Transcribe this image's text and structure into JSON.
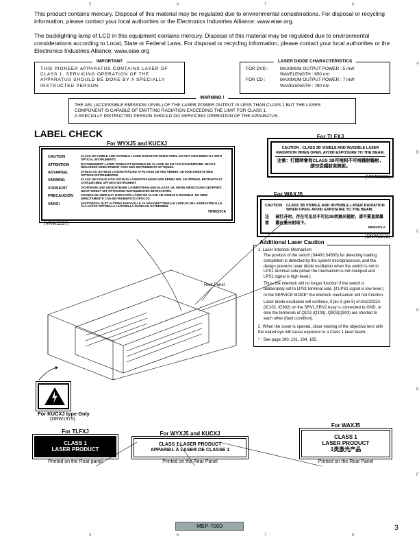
{
  "ruler": {
    "top": [
      "5",
      "6",
      "7",
      "8"
    ],
    "bottom": [
      "5",
      "6",
      "7",
      "8"
    ],
    "side": [
      "A",
      "B",
      "C",
      "D",
      "E",
      "F"
    ]
  },
  "intro": {
    "p1": "This product contains mercury. Disposal of this material may be regulated due to environmental considerations. For disposal or recycling information, please contact your local authorities or the Electronics Industries Alliance: www.eiae.org.",
    "p2": "The backlighting lamp of LCD in this equipment contains mercury. Disposal of this material may be regulated due to environmental considerations according to Local, State or Federal Laws. For disposal or recycling information, please contact your local authorities or the Electronics Industries Alliance: www.eiae.org"
  },
  "important": {
    "title": "IMPORTANT",
    "body": "THIS PIONEER APPARATUS CONTAINS LASER OF CLASS 1. SERVICING OPERATION OF THE APPARATUS SHOULD BE DONE BY A SPECIALLY INSTRUCTED PERSON."
  },
  "laser_diode": {
    "title": "LASER DIODE CHARACTERISTICS",
    "dvd_label": "FOR DVD :",
    "dvd_power": "MAXIMUM OUTPUT POWER : 5 mW",
    "dvd_wave": "WAVELENGTH : 650 nm",
    "cd_label": "FOR CD :",
    "cd_power": "MAXIMUM OUTPUT POWER : 7 mW",
    "cd_wave": "WAVELENGTH : 780 nm"
  },
  "warning_box": {
    "title": "WARNING !",
    "body": "THE AEL (ACCESSIBLE EMISSION LEVEL) OF THE LASER POWER OUTPUT IS LESS THAN CLASS 1 BUT THE LASER COMPONENT IS CAPABLE OF EMITTING RADIATION EXCEEDING THE LIMIT FOR CLASS 1.\nA SPECIALLY INSTRUCTED PERSON SHOULD DO SERVICING OPERATION OF THE APPARATUS."
  },
  "label_check": {
    "heading": "LABEL CHECK",
    "for_wyxj5_kucxj": "For WYXJ5 and KUCXJ",
    "for_tlfxj": "For TLFXJ",
    "for_waxj5": "For WAXJ5",
    "vrw2257": "(VRW2257)",
    "vrw2159": "(VRW2159)",
    "drw2372": "(DRW2372)",
    "drw1975": "(DRW1975)",
    "kucxj_only": "For KUCXJ type Only",
    "rear_panel": "Rear Panel"
  },
  "caution_label": {
    "rows": [
      [
        "CAUTION",
        "CLASS 1M VISIBLE AND INVISIBLE LASER RADIATION WHEN OPEN. DO NOT VIEW DIRECTLY WITH OPTICAL INSTRUMENTS."
      ],
      [
        "ATTENTION",
        "RAYONNEMENT LASER VISIBLE ET INVISIBLE DE CLASSE 1M EN CAS D'OUVERTURE. NE PAS REGARDER DIRECTEMENT AVEC DES INSTRUMENTS OPTIQUES."
      ],
      [
        "ADVARSEL",
        "SYNLIG OG USYNLIG LASERSTRÅLING AF KLASSE 1M VED ÅBNING. SE IKKE DIREKTE MED OPTISKE INSTRUMENTER."
      ],
      [
        "VARNING",
        "KLASS 1M SYNLIG OCH OSYNLIG LASERSTRÅLNING NÄR DENNA DEL ÄR ÖPPNAD. BETRAKTA EJ STRÅLEN MED OPTISKA INSTRUMENT."
      ],
      [
        "VORSICHT",
        "SICHTBARE UND UNSICHTBARE LASERSTRAHLUNG KLASSE 1M, WENN ABDECKUNG GEÖFFNET. NICHT DIREKT MIT OPTISCHEN INSTRUMENTEN BETRACHTEN."
      ],
      [
        "PRECAUCIÓN",
        "CUANDO SE ABRE HAY RADIACIÓN LÁSER DE CLASE 1M VISIBLE E INVISIBLE. NO MIRE DIRECTAMENTE CON INSTRUMENTOS ÓPTICOS."
      ],
      [
        "VARO!",
        "AVATTAESSA OLET ALTTIINA NÄKYVÄLLE JA NÄKYMÄTTÖMÄLLE LUOKAN 1M LASERSÄTEILYLLE. ÄLÄ KATSO OPTISELLA LAITTEELLA SUORAAN SÄTEESEEN."
      ]
    ],
    "code": "VRW2257A"
  },
  "tlfxj_label": {
    "line1": "CAUTION : CLASS 3B VISIBLE AND INVISIBLE LASER RADIATION WHEN OPEN, AVOID EXPOSURE TO THE BEAM.",
    "line2": "注意：打開時會有CLASS 3B可視和不可視鐳射輻射，請勿受鐳射束照射。"
  },
  "waxj5_label": {
    "caution": "CAUTION",
    "caution_body": "CLASS 3B VISIBLE AND INVISIBLE LASER RADIATION WHEN OPEN, AVOID EXPOSURE TO THE BEAM.",
    "zhuyi": "注意",
    "zhuyi_body": "被打开时，存在可见及不可见3B类激光辐射，请不要直接暴露在激光射线下。",
    "code": "DRW2372-A"
  },
  "additional": {
    "title": "Additional Laser Caution",
    "item1_head": "1. Laser Interlock Mechanism",
    "item1_p1": "The position of the switch (S4400,S4500) for detecting loading completion is detected by the system microprocessor, and the design prevents laser diode oscillation when the switch is not in LPS1 terminal side (when the mechanism is not clamped and LPS1 signal is high level.)",
    "item1_p2": "Thus, the interlock will no longer function if the switch is deliberately set to LPS1 terminal side. (if LPS1 signal is low level.)",
    "item1_p3": "In the SERVICE MODE* the interlock mechanism will not function.",
    "item1_p4": "Laser diode oscillation will continue, if pin 3 (pin 5) of AN22022A (IC102, IC902) on the SRV1,SRV2 Assy is connected to GND, or else the terminals of Q102 (Q103), Q902(Q903) are shorted to each other (fault condition).",
    "item2": "2. When the cover is opened, close viewing of the objective lens with the naked eye will cause exposure to a Class 1 laser beam.",
    "foot": "* : See page 160, 161, 164, 165."
  },
  "bottom_labels": {
    "class1": "CLASS 1\nLASER PRODUCT",
    "french": "CLASS 1 LASER PRODUCT\nAPPAREIL À LASER DE CLASSE 1",
    "chinese": "CLASS 1\nLASER PRODUCT\n1类激光产品",
    "printed_rear_lc": "Printed on the Rear panel",
    "printed_rear": "Printed on the Rear Panel"
  },
  "footer": {
    "model": "MEP-7000",
    "page": "3"
  }
}
